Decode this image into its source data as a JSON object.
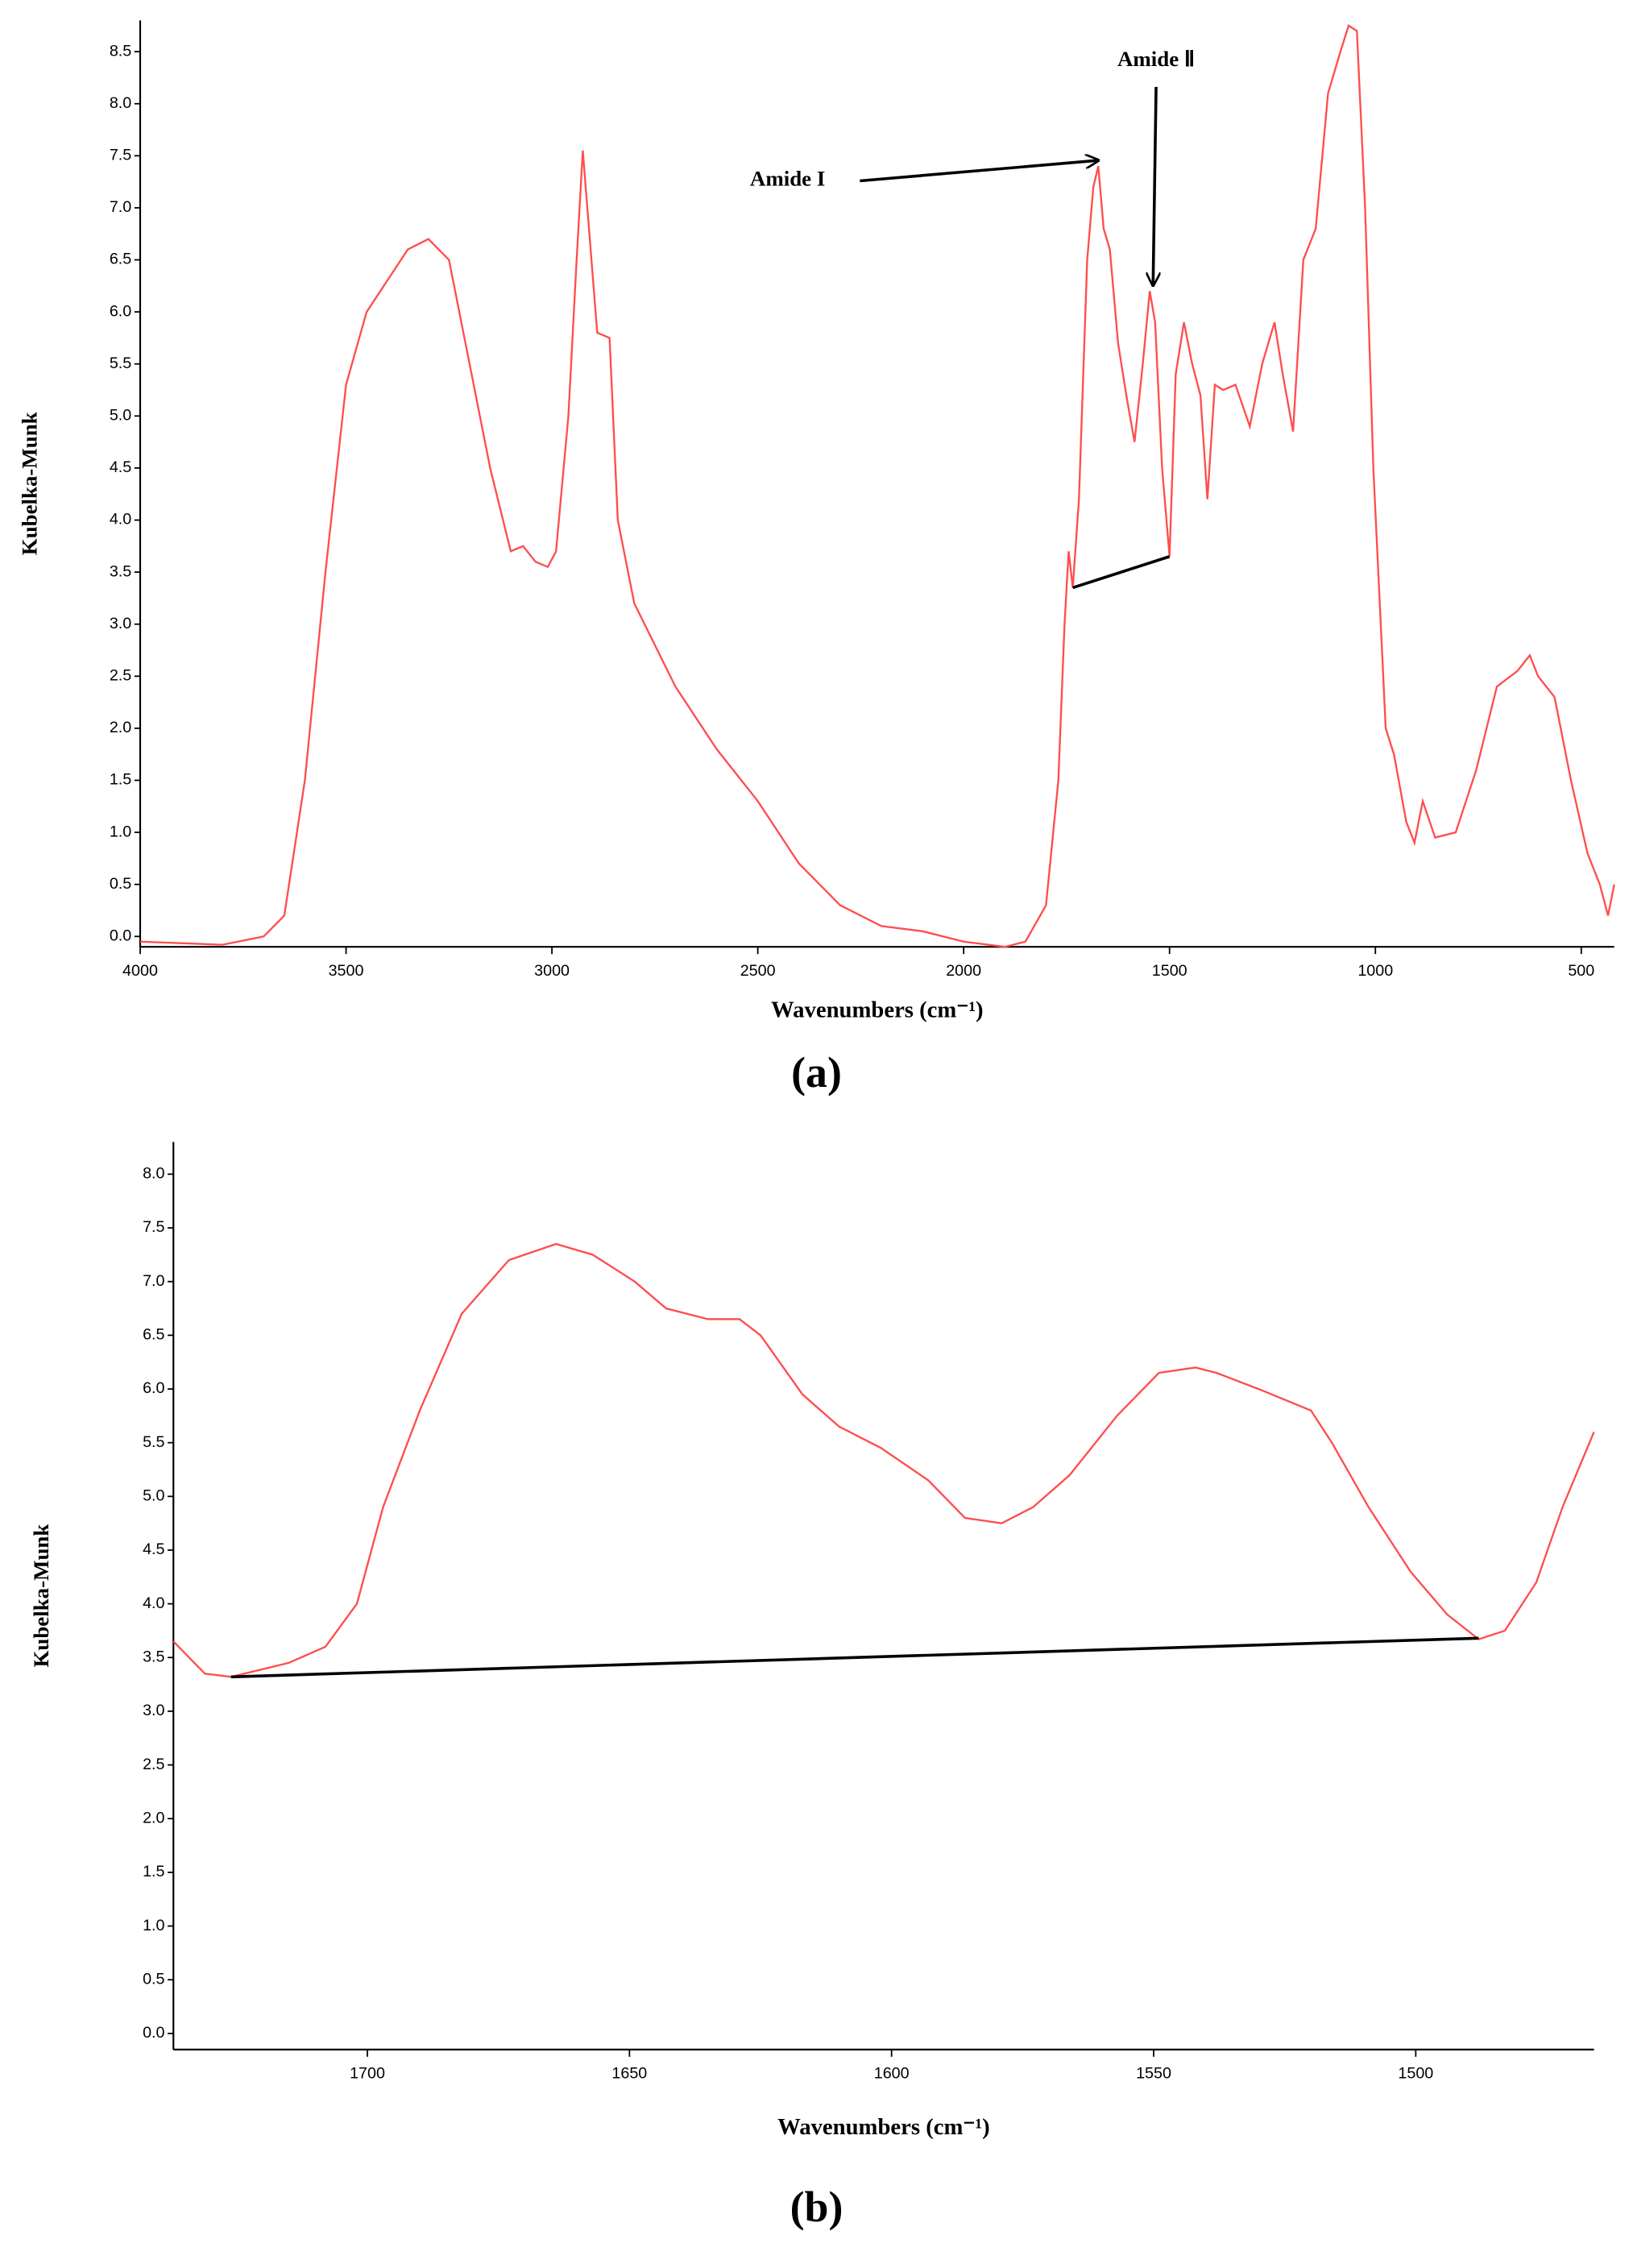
{
  "chart_data": [
    {
      "type": "line",
      "caption": "(a)",
      "xlabel": "Wavenumbers (cm⁻¹)",
      "ylabel": "Kubelka-Munk",
      "xlim": [
        4000,
        420
      ],
      "ylim": [
        -0.1,
        8.8
      ],
      "xticks": [
        4000,
        3500,
        3000,
        2500,
        2000,
        1500,
        1000,
        500
      ],
      "yticks": [
        {
          "value": 0,
          "label": "0.0"
        },
        0.5,
        {
          "value": 1,
          "label": "1.0"
        },
        1.5,
        {
          "value": 2,
          "label": "2.0"
        },
        2.5,
        {
          "value": 3,
          "label": "3.0"
        },
        3.5,
        {
          "value": 4,
          "label": "4.0"
        },
        4.5,
        {
          "value": 5,
          "label": "5.0"
        },
        5.5,
        {
          "value": 6,
          "label": "6.0"
        },
        6.5,
        {
          "value": 7,
          "label": "7.0"
        },
        7.5,
        {
          "value": 8,
          "label": "8.0"
        },
        8.5
      ],
      "grid": false,
      "series": [
        {
          "color": "#ff4d4d",
          "x": [
            4000,
            3800,
            3700,
            3650,
            3600,
            3550,
            3500,
            3450,
            3400,
            3350,
            3300,
            3250,
            3200,
            3150,
            3100,
            3070,
            3040,
            3010,
            2990,
            2960,
            2940,
            2925,
            2910,
            2890,
            2860,
            2840,
            2800,
            2700,
            2600,
            2500,
            2400,
            2300,
            2200,
            2100,
            2000,
            1900,
            1850,
            1800,
            1770,
            1755,
            1745,
            1735,
            1720,
            1700,
            1685,
            1673,
            1660,
            1645,
            1625,
            1605,
            1585,
            1565,
            1548,
            1535,
            1518,
            1500,
            1485,
            1465,
            1445,
            1425,
            1408,
            1390,
            1370,
            1340,
            1305,
            1275,
            1245,
            1225,
            1200,
            1175,
            1145,
            1115,
            1085,
            1065,
            1045,
            1025,
            1005,
            975,
            955,
            925,
            905,
            885,
            855,
            805,
            755,
            705,
            655,
            625,
            605,
            565,
            525,
            485,
            455,
            435,
            420
          ],
          "values": [
            -0.05,
            -0.08,
            0,
            0.2,
            1.5,
            3.5,
            5.3,
            6.0,
            6.3,
            6.6,
            6.7,
            6.5,
            5.5,
            4.5,
            3.7,
            3.75,
            3.6,
            3.55,
            3.7,
            5.0,
            6.5,
            7.55,
            6.8,
            5.8,
            5.75,
            4.0,
            3.2,
            2.4,
            1.8,
            1.3,
            0.7,
            0.3,
            0.1,
            0.05,
            -0.05,
            -0.1,
            -0.05,
            0.3,
            1.5,
            3.0,
            3.7,
            3.35,
            4.2,
            6.5,
            7.2,
            7.4,
            6.8,
            6.6,
            5.7,
            5.2,
            4.75,
            5.5,
            6.2,
            5.9,
            4.5,
            3.65,
            5.4,
            5.9,
            5.5,
            5.2,
            4.2,
            5.3,
            5.25,
            5.3,
            4.9,
            5.5,
            5.9,
            5.4,
            4.85,
            6.5,
            6.8,
            8.1,
            8.5,
            8.75,
            8.7,
            7.0,
            4.5,
            2.0,
            1.75,
            1.1,
            0.9,
            1.3,
            0.95,
            1.0,
            1.6,
            2.4,
            2.55,
            2.7,
            2.5,
            2.3,
            1.5,
            0.8,
            0.5,
            0.2,
            0.5
          ]
        },
        {
          "color": "#000000",
          "x": [
            1735,
            1500
          ],
          "values": [
            3.35,
            3.65
          ]
        }
      ],
      "annotations": [
        {
          "text": "Amide I",
          "x": 1673,
          "y": 7.4
        },
        {
          "text": "Amide Ⅱ",
          "x": 1540,
          "y": 6.2
        }
      ]
    },
    {
      "type": "line",
      "caption": "(b)",
      "xlabel": "Wavenumbers (cm⁻¹)",
      "ylabel": "Kubelka-Munk",
      "xlim": [
        1737,
        1466
      ],
      "ylim": [
        -0.15,
        8.3
      ],
      "xticks": [
        1700,
        1650,
        1600,
        1550,
        1500
      ],
      "yticks": [
        {
          "value": 0,
          "label": "0.0"
        },
        0.5,
        {
          "value": 1,
          "label": "1.0"
        },
        1.5,
        {
          "value": 2,
          "label": "2.0"
        },
        2.5,
        {
          "value": 3,
          "label": "3.0"
        },
        3.5,
        {
          "value": 4,
          "label": "4.0"
        },
        4.5,
        {
          "value": 5,
          "label": "5.0"
        },
        5.5,
        {
          "value": 6,
          "label": "6.0"
        },
        6.5,
        {
          "value": 7,
          "label": "7.0"
        },
        7.5,
        {
          "value": 8,
          "label": "8.0"
        }
      ],
      "grid": false,
      "series": [
        {
          "color": "#ff4d4d",
          "x": [
            1737,
            1731,
            1726,
            1715,
            1708,
            1702,
            1697,
            1690,
            1682,
            1673,
            1664,
            1657,
            1649,
            1643,
            1635,
            1629,
            1625,
            1617,
            1610,
            1602,
            1593,
            1586,
            1579,
            1573,
            1566,
            1557,
            1549,
            1542,
            1538,
            1530,
            1520,
            1516,
            1509,
            1501,
            1494,
            1488,
            1483,
            1477,
            1472,
            1466
          ],
          "values": [
            3.65,
            3.35,
            3.32,
            3.45,
            3.6,
            4.0,
            4.9,
            5.8,
            6.7,
            7.2,
            7.35,
            7.25,
            7.0,
            6.75,
            6.65,
            6.65,
            6.5,
            5.95,
            5.65,
            5.45,
            5.15,
            4.8,
            4.75,
            4.9,
            5.2,
            5.75,
            6.15,
            6.2,
            6.15,
            6.0,
            5.8,
            5.5,
            4.9,
            4.3,
            3.9,
            3.67,
            3.75,
            4.2,
            4.9,
            5.6
          ]
        },
        {
          "color": "#000000",
          "x": [
            1726,
            1488
          ],
          "values": [
            3.32,
            3.68
          ]
        }
      ]
    }
  ]
}
